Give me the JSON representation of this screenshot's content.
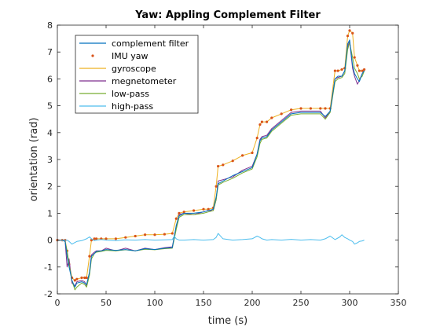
{
  "chart_data": {
    "type": "line",
    "title": "Yaw: Appling Complement Filter",
    "xlabel": "time (s)",
    "ylabel": "orientation (rad)",
    "xlim": [
      0,
      350
    ],
    "ylim": [
      -2,
      8
    ],
    "xticks": [
      0,
      50,
      100,
      150,
      200,
      250,
      300,
      350
    ],
    "yticks": [
      -2,
      -1,
      0,
      1,
      2,
      3,
      4,
      5,
      6,
      7,
      8
    ],
    "grid": false,
    "legend_position": "top-left",
    "series": [
      {
        "name": "complement filter",
        "color": "#0072bd",
        "style": "line",
        "x": [
          0,
          5,
          8,
          10,
          12,
          15,
          18,
          20,
          25,
          28,
          30,
          33,
          35,
          38,
          40,
          45,
          50,
          60,
          70,
          80,
          90,
          100,
          110,
          118,
          122,
          125,
          130,
          140,
          150,
          155,
          160,
          163,
          165,
          170,
          180,
          190,
          200,
          205,
          208,
          210,
          215,
          220,
          230,
          240,
          250,
          260,
          270,
          275,
          280,
          285,
          288,
          292,
          295,
          298,
          300,
          303,
          305,
          308,
          310,
          313,
          315
        ],
        "y": [
          0,
          0,
          -0.05,
          -0.6,
          -1.0,
          -1.5,
          -1.75,
          -1.6,
          -1.55,
          -1.6,
          -1.65,
          -1.2,
          -0.6,
          -0.5,
          -0.42,
          -0.4,
          -0.35,
          -0.38,
          -0.35,
          -0.4,
          -0.32,
          -0.35,
          -0.3,
          -0.28,
          0.55,
          0.9,
          1.0,
          1.0,
          1.05,
          1.1,
          1.15,
          1.6,
          2.1,
          2.2,
          2.4,
          2.55,
          2.7,
          3.2,
          3.7,
          3.8,
          3.85,
          4.1,
          4.4,
          4.7,
          4.75,
          4.75,
          4.75,
          4.6,
          4.8,
          6.0,
          6.1,
          6.1,
          6.3,
          7.3,
          7.45,
          6.5,
          6.2,
          6.0,
          5.9,
          6.2,
          6.3
        ]
      },
      {
        "name": "IMU yaw",
        "color": "#d95319",
        "style": "marker",
        "x": [
          0,
          5,
          8,
          10,
          12,
          15,
          18,
          20,
          25,
          28,
          30,
          33,
          35,
          38,
          40,
          45,
          50,
          60,
          70,
          80,
          90,
          100,
          110,
          118,
          122,
          125,
          130,
          140,
          150,
          155,
          160,
          163,
          165,
          170,
          180,
          190,
          200,
          205,
          208,
          210,
          215,
          220,
          230,
          240,
          250,
          260,
          270,
          275,
          280,
          285,
          288,
          292,
          295,
          298,
          300,
          303,
          305,
          308,
          310,
          313,
          315
        ],
        "y": [
          0,
          0,
          0,
          -0.4,
          -0.9,
          -1.4,
          -1.5,
          -1.45,
          -1.4,
          -1.4,
          -1.4,
          -0.6,
          0.0,
          0.05,
          0.05,
          0.05,
          0.05,
          0.05,
          0.1,
          0.15,
          0.2,
          0.2,
          0.22,
          0.25,
          0.8,
          1.0,
          1.05,
          1.1,
          1.15,
          1.15,
          1.2,
          2.0,
          2.75,
          2.8,
          2.95,
          3.15,
          3.25,
          3.8,
          4.3,
          4.4,
          4.4,
          4.55,
          4.7,
          4.85,
          4.9,
          4.9,
          4.9,
          4.9,
          4.9,
          6.3,
          6.3,
          6.35,
          6.4,
          7.6,
          7.8,
          7.7,
          6.8,
          6.5,
          6.3,
          6.3,
          6.35
        ]
      },
      {
        "name": "gyroscope",
        "color": "#edb120",
        "style": "line",
        "x": [
          0,
          5,
          8,
          10,
          12,
          15,
          18,
          20,
          25,
          28,
          30,
          33,
          35,
          38,
          40,
          45,
          50,
          60,
          70,
          80,
          90,
          100,
          110,
          118,
          122,
          125,
          130,
          140,
          150,
          155,
          160,
          163,
          165,
          170,
          180,
          190,
          200,
          205,
          208,
          210,
          215,
          220,
          230,
          240,
          250,
          260,
          270,
          275,
          280,
          285,
          288,
          292,
          295,
          298,
          300,
          303,
          305,
          308,
          310,
          313,
          315
        ],
        "y": [
          0,
          0,
          0,
          -0.4,
          -0.9,
          -1.4,
          -1.5,
          -1.45,
          -1.4,
          -1.4,
          -1.4,
          -0.6,
          0.0,
          0.05,
          0.05,
          0.05,
          0.05,
          0.05,
          0.1,
          0.15,
          0.2,
          0.2,
          0.22,
          0.25,
          0.8,
          1.0,
          1.05,
          1.1,
          1.15,
          1.15,
          1.2,
          2.0,
          2.75,
          2.8,
          2.95,
          3.15,
          3.25,
          3.8,
          4.3,
          4.4,
          4.4,
          4.55,
          4.7,
          4.85,
          4.9,
          4.9,
          4.9,
          4.9,
          4.9,
          6.3,
          6.3,
          6.35,
          6.4,
          7.6,
          7.8,
          7.7,
          6.8,
          6.5,
          6.3,
          6.3,
          6.35
        ]
      },
      {
        "name": "megnetometer",
        "color": "#7e2f8e",
        "style": "line",
        "x": [
          0,
          5,
          8,
          10,
          12,
          15,
          18,
          20,
          25,
          28,
          30,
          33,
          35,
          38,
          40,
          45,
          50,
          60,
          70,
          80,
          90,
          100,
          110,
          118,
          122,
          125,
          130,
          140,
          150,
          155,
          160,
          163,
          165,
          170,
          180,
          190,
          200,
          205,
          208,
          210,
          215,
          220,
          230,
          240,
          250,
          260,
          270,
          275,
          280,
          285,
          288,
          292,
          295,
          298,
          300,
          303,
          305,
          308,
          310,
          313,
          315
        ],
        "y": [
          0,
          0,
          -0.05,
          -1.0,
          -0.7,
          -1.6,
          -1.7,
          -1.55,
          -1.5,
          -1.55,
          -1.7,
          -1.2,
          -0.55,
          -0.45,
          -0.4,
          -0.4,
          -0.3,
          -0.4,
          -0.3,
          -0.4,
          -0.3,
          -0.35,
          -0.28,
          -0.25,
          0.5,
          0.95,
          1.0,
          0.95,
          1.05,
          1.1,
          1.1,
          1.5,
          2.2,
          2.25,
          2.35,
          2.6,
          2.75,
          3.2,
          3.75,
          3.85,
          3.9,
          4.15,
          4.45,
          4.75,
          4.8,
          4.8,
          4.8,
          4.55,
          4.8,
          6.0,
          6.05,
          6.1,
          6.3,
          7.2,
          7.4,
          6.4,
          6.1,
          5.8,
          5.95,
          6.2,
          6.3
        ]
      },
      {
        "name": "low-pass",
        "color": "#77ac30",
        "style": "line",
        "x": [
          0,
          5,
          8,
          10,
          12,
          15,
          18,
          20,
          25,
          28,
          30,
          33,
          35,
          38,
          40,
          45,
          50,
          60,
          70,
          80,
          90,
          100,
          110,
          118,
          122,
          125,
          130,
          140,
          150,
          155,
          160,
          163,
          165,
          170,
          180,
          190,
          200,
          205,
          208,
          210,
          215,
          220,
          230,
          240,
          250,
          260,
          270,
          275,
          280,
          285,
          288,
          292,
          295,
          298,
          300,
          303,
          305,
          308,
          310,
          313,
          315
        ],
        "y": [
          0,
          0,
          -0.05,
          -0.4,
          -0.9,
          -1.5,
          -1.85,
          -1.75,
          -1.6,
          -1.65,
          -1.75,
          -1.3,
          -0.7,
          -0.5,
          -0.45,
          -0.42,
          -0.38,
          -0.4,
          -0.36,
          -0.4,
          -0.34,
          -0.36,
          -0.32,
          -0.3,
          0.4,
          0.85,
          0.95,
          0.95,
          1.0,
          1.05,
          1.1,
          1.5,
          2.05,
          2.15,
          2.3,
          2.5,
          2.65,
          3.1,
          3.6,
          3.75,
          3.8,
          4.05,
          4.35,
          4.65,
          4.7,
          4.7,
          4.7,
          4.5,
          4.75,
          5.9,
          6.0,
          6.05,
          6.2,
          7.1,
          7.35,
          6.8,
          6.4,
          6.2,
          6.0,
          6.1,
          6.3
        ]
      },
      {
        "name": "high-pass",
        "color": "#4dbeee",
        "style": "line",
        "x": [
          0,
          5,
          10,
          12,
          15,
          20,
          25,
          30,
          33,
          35,
          38,
          40,
          45,
          50,
          60,
          70,
          80,
          90,
          100,
          110,
          118,
          120,
          122,
          125,
          130,
          140,
          150,
          160,
          163,
          165,
          170,
          180,
          190,
          200,
          205,
          208,
          210,
          215,
          220,
          230,
          240,
          250,
          260,
          270,
          275,
          280,
          285,
          290,
          292,
          295,
          298,
          300,
          303,
          305,
          308,
          310,
          313,
          315
        ],
        "y": [
          0,
          0,
          0,
          -0.05,
          -0.15,
          -0.05,
          -0.02,
          0.05,
          0.12,
          0.05,
          -0.02,
          0.0,
          0.02,
          0.0,
          -0.02,
          0.01,
          0.0,
          0.02,
          0.0,
          0.01,
          0.02,
          0.15,
          0.05,
          0.0,
          0.0,
          0.02,
          0.0,
          0.02,
          0.1,
          0.25,
          0.05,
          0.0,
          0.02,
          0.05,
          0.15,
          0.1,
          0.05,
          0.0,
          0.02,
          0.0,
          0.03,
          0.0,
          0.02,
          0.0,
          0.05,
          0.15,
          0.02,
          0.12,
          0.2,
          0.1,
          0.05,
          0.0,
          -0.05,
          -0.15,
          -0.1,
          -0.05,
          -0.03,
          0.0
        ]
      }
    ]
  }
}
